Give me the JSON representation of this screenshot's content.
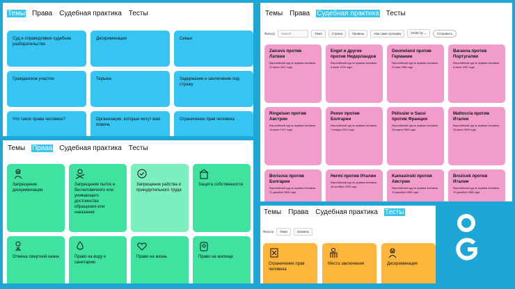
{
  "navs": {
    "p1": [
      "Темы",
      "Права",
      "Судебная практика",
      "Тесты"
    ],
    "p2": [
      "Темы",
      "Права",
      "Судебная практика",
      "Тесты"
    ],
    "p3": [
      "Темы",
      "Права",
      "Судебная практика",
      "Тесты"
    ],
    "p4": [
      "Темы",
      "Права",
      "Судебная практика",
      "Тесты"
    ]
  },
  "active_tab": {
    "p1": "Темы",
    "p2": "Права",
    "p3": "Судебная практика",
    "p4": "Тесты"
  },
  "topics": [
    "Суд и справедливое судебное разбирательство",
    "Дискриминация",
    "Семья",
    "Гражданское участие",
    "Тюрьма",
    "Задержание и заключение под стражу",
    "Что такое права человека?",
    "Организации, которые могут вам помочь",
    "Ограничение прав человека"
  ],
  "rights": [
    {
      "label": "Запрещение дискриминации",
      "icon": "no-discrimination-icon"
    },
    {
      "label": "Запрещение пыток и бесчеловечного или унижающего достоинства обращения или наказания",
      "icon": "no-torture-icon"
    },
    {
      "label": "Запрещение рабства и принудительного труда",
      "icon": "no-slavery-icon"
    },
    {
      "label": "Защита собственности",
      "icon": "property-icon"
    },
    {
      "label": "Отмена смертной казни",
      "icon": "no-death-penalty-icon"
    },
    {
      "label": "Право на воду и санитарию",
      "icon": "water-icon"
    },
    {
      "label": "Право на жизнь",
      "icon": "life-icon"
    },
    {
      "label": "Право на жилище",
      "icon": "housing-icon"
    }
  ],
  "filters": {
    "label": "Фильтр",
    "search_placeholder": "Search",
    "chips": [
      "Тема",
      "Страна",
      "Уровень",
      "Нак саме хугемаку",
      "Order by"
    ],
    "submit": "Отправить"
  },
  "cases": [
    {
      "title": "Zaicevs против Латвии",
      "court": "Европейский суд по правам человека",
      "date": "31 июля 2007 года"
    },
    {
      "title": "Engel и другие против Нидерландов",
      "court": "Европейский суд по правам человека",
      "date": "8 июня 1976 года"
    },
    {
      "title": "Deumeland против Германии",
      "court": "Европейский суд по правам человека",
      "date": "29 мая 1986 года"
    },
    {
      "title": "Baraona против Португалии",
      "court": "Европейский суд по правам человека",
      "date": "8 июля 1987 года"
    },
    {
      "title": "Ringeisen против Австрии",
      "court": "Европейский суд по правам человека",
      "date": "16 июля 1971 года"
    },
    {
      "title": "Penev против Болгарии",
      "court": "Европейский суд по правам человека",
      "date": "7 января 2010 года"
    },
    {
      "title": "Pélissier и Sassi против Франции",
      "court": "Европейский суд по правам человека",
      "date": "25 марта 1999 года"
    },
    {
      "title": "Mattoccia против Италии",
      "court": "Европейский суд по правам человека",
      "date": "25 июля 2000 года"
    },
    {
      "title": "Borisova против Болгарии",
      "court": "Европейский суд по правам человека",
      "date": "21 декабря 2006 года"
    },
    {
      "title": "Hermi против Италии",
      "court": "Европейский суд по правам человека",
      "date": "18 октября 2006 года"
    },
    {
      "title": "Kamasinski против Австрии",
      "court": "Европейский суд по правам человека",
      "date": "19 декабря 1989 года"
    },
    {
      "title": "Brozicek против Италии",
      "court": "Европейский суд по правам человека",
      "date": "19 декабря 1989 года"
    }
  ],
  "tests_filters": {
    "label": "Фильтр",
    "chips": [
      "Тема",
      "Уровень"
    ]
  },
  "tests": [
    {
      "label": "Ограничение прав человека",
      "icon": "document-x-icon"
    },
    {
      "label": "Места заключения",
      "icon": "prison-icon"
    },
    {
      "label": "Дискриминация",
      "icon": "no-discrimination-icon"
    }
  ],
  "colors": {
    "background": "#1ea7d6",
    "topics": "#36c5f3",
    "rights": "#3fe29e",
    "cases": "#f29ccc",
    "tests": "#fdb53c"
  }
}
